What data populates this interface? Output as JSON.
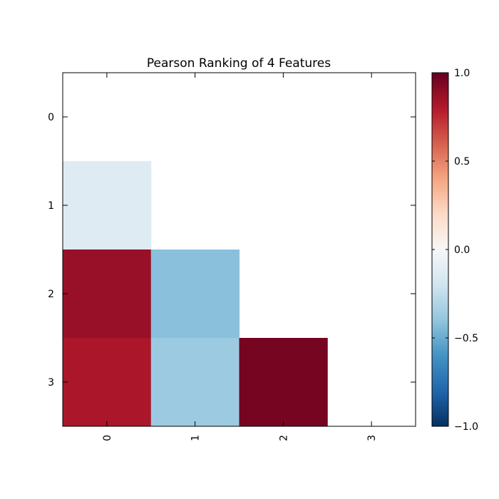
{
  "chart_data": {
    "type": "heatmap",
    "title": "Pearson Ranking of 4 Features",
    "row_labels": [
      "0",
      "1",
      "2",
      "3"
    ],
    "col_labels": [
      "0",
      "1",
      "2",
      "3"
    ],
    "cells": [
      {
        "row": 1,
        "col": 0,
        "value": -0.13
      },
      {
        "row": 2,
        "col": 0,
        "value": 0.87
      },
      {
        "row": 2,
        "col": 1,
        "value": -0.42
      },
      {
        "row": 3,
        "col": 0,
        "value": 0.82
      },
      {
        "row": 3,
        "col": 1,
        "value": -0.37
      },
      {
        "row": 3,
        "col": 2,
        "value": 0.96
      }
    ],
    "colorbar": {
      "range": [
        -1.0,
        1.0
      ],
      "ticks": [
        1.0,
        0.5,
        0.0,
        -0.5,
        -1.0
      ],
      "tick_labels": [
        "1.0",
        "0.5",
        "0.0",
        "−0.5",
        "−1.0"
      ],
      "colormap": "RdBu_r"
    }
  }
}
